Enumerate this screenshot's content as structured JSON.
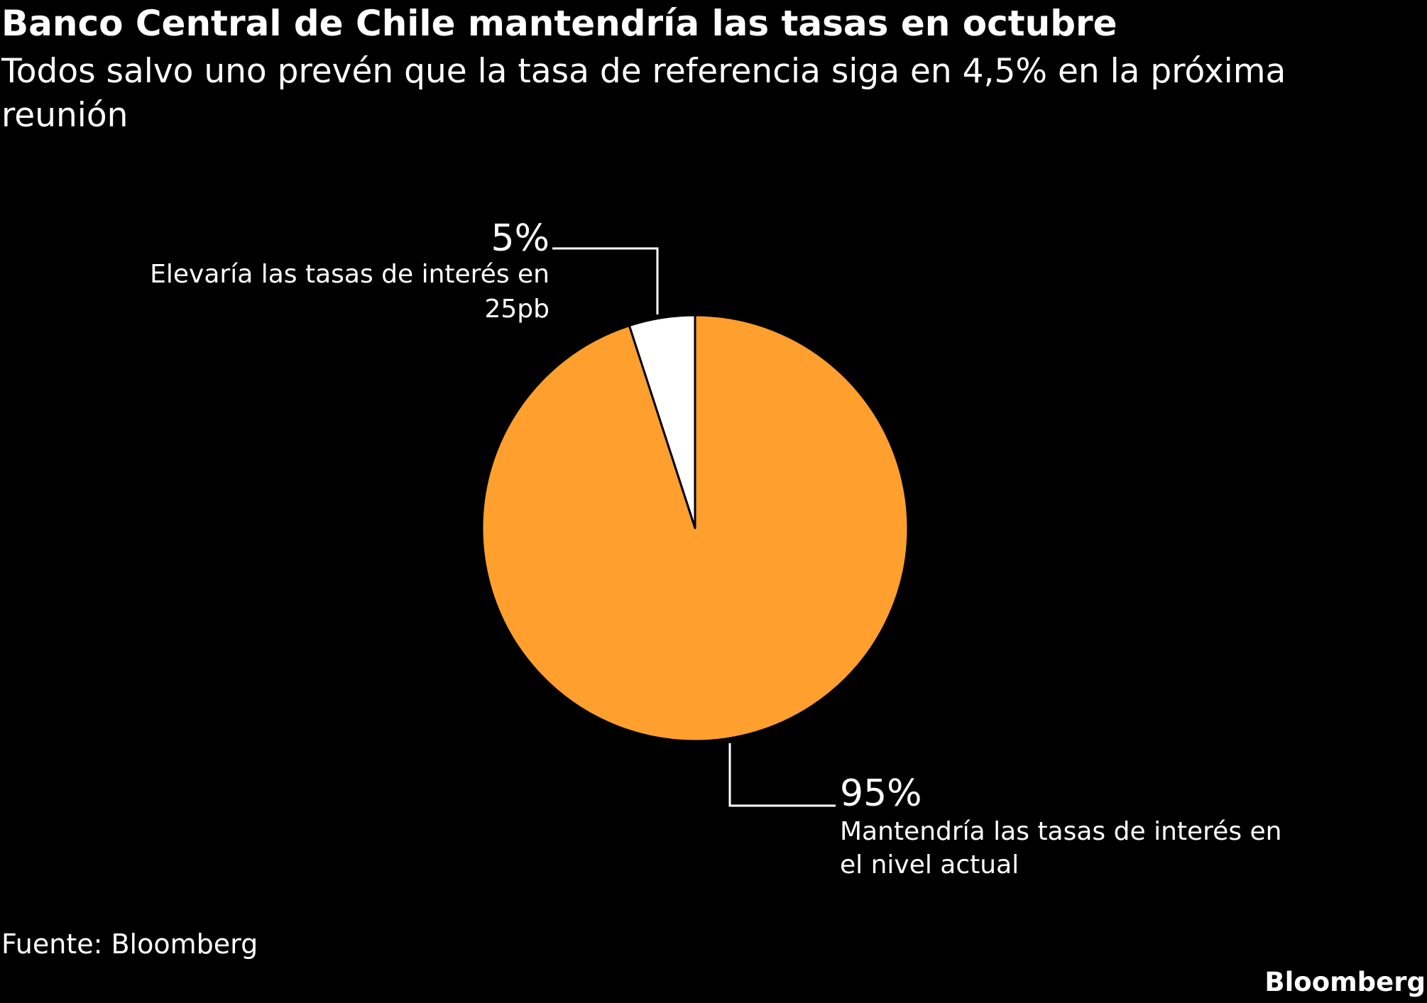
{
  "header": {
    "title": "Banco Central de Chile mantendría las tasas en octubre",
    "subtitle": "Todos salvo uno prevén que la tasa de referencia siga en 4,5% en la próxima reunión"
  },
  "chart_data": {
    "type": "pie",
    "slices": [
      {
        "value": 5,
        "percent_label": "5%",
        "label_lines": [
          "Elevaría las tasas de interés en",
          "25pb"
        ],
        "color": "#ffffff"
      },
      {
        "value": 95,
        "percent_label": "95%",
        "label_lines": [
          "Mantendría las tasas de interés en",
          "el nivel actual"
        ],
        "color": "#ffa02e"
      }
    ]
  },
  "footer": {
    "source": "Fuente: Bloomberg",
    "brand": "Bloomberg"
  }
}
